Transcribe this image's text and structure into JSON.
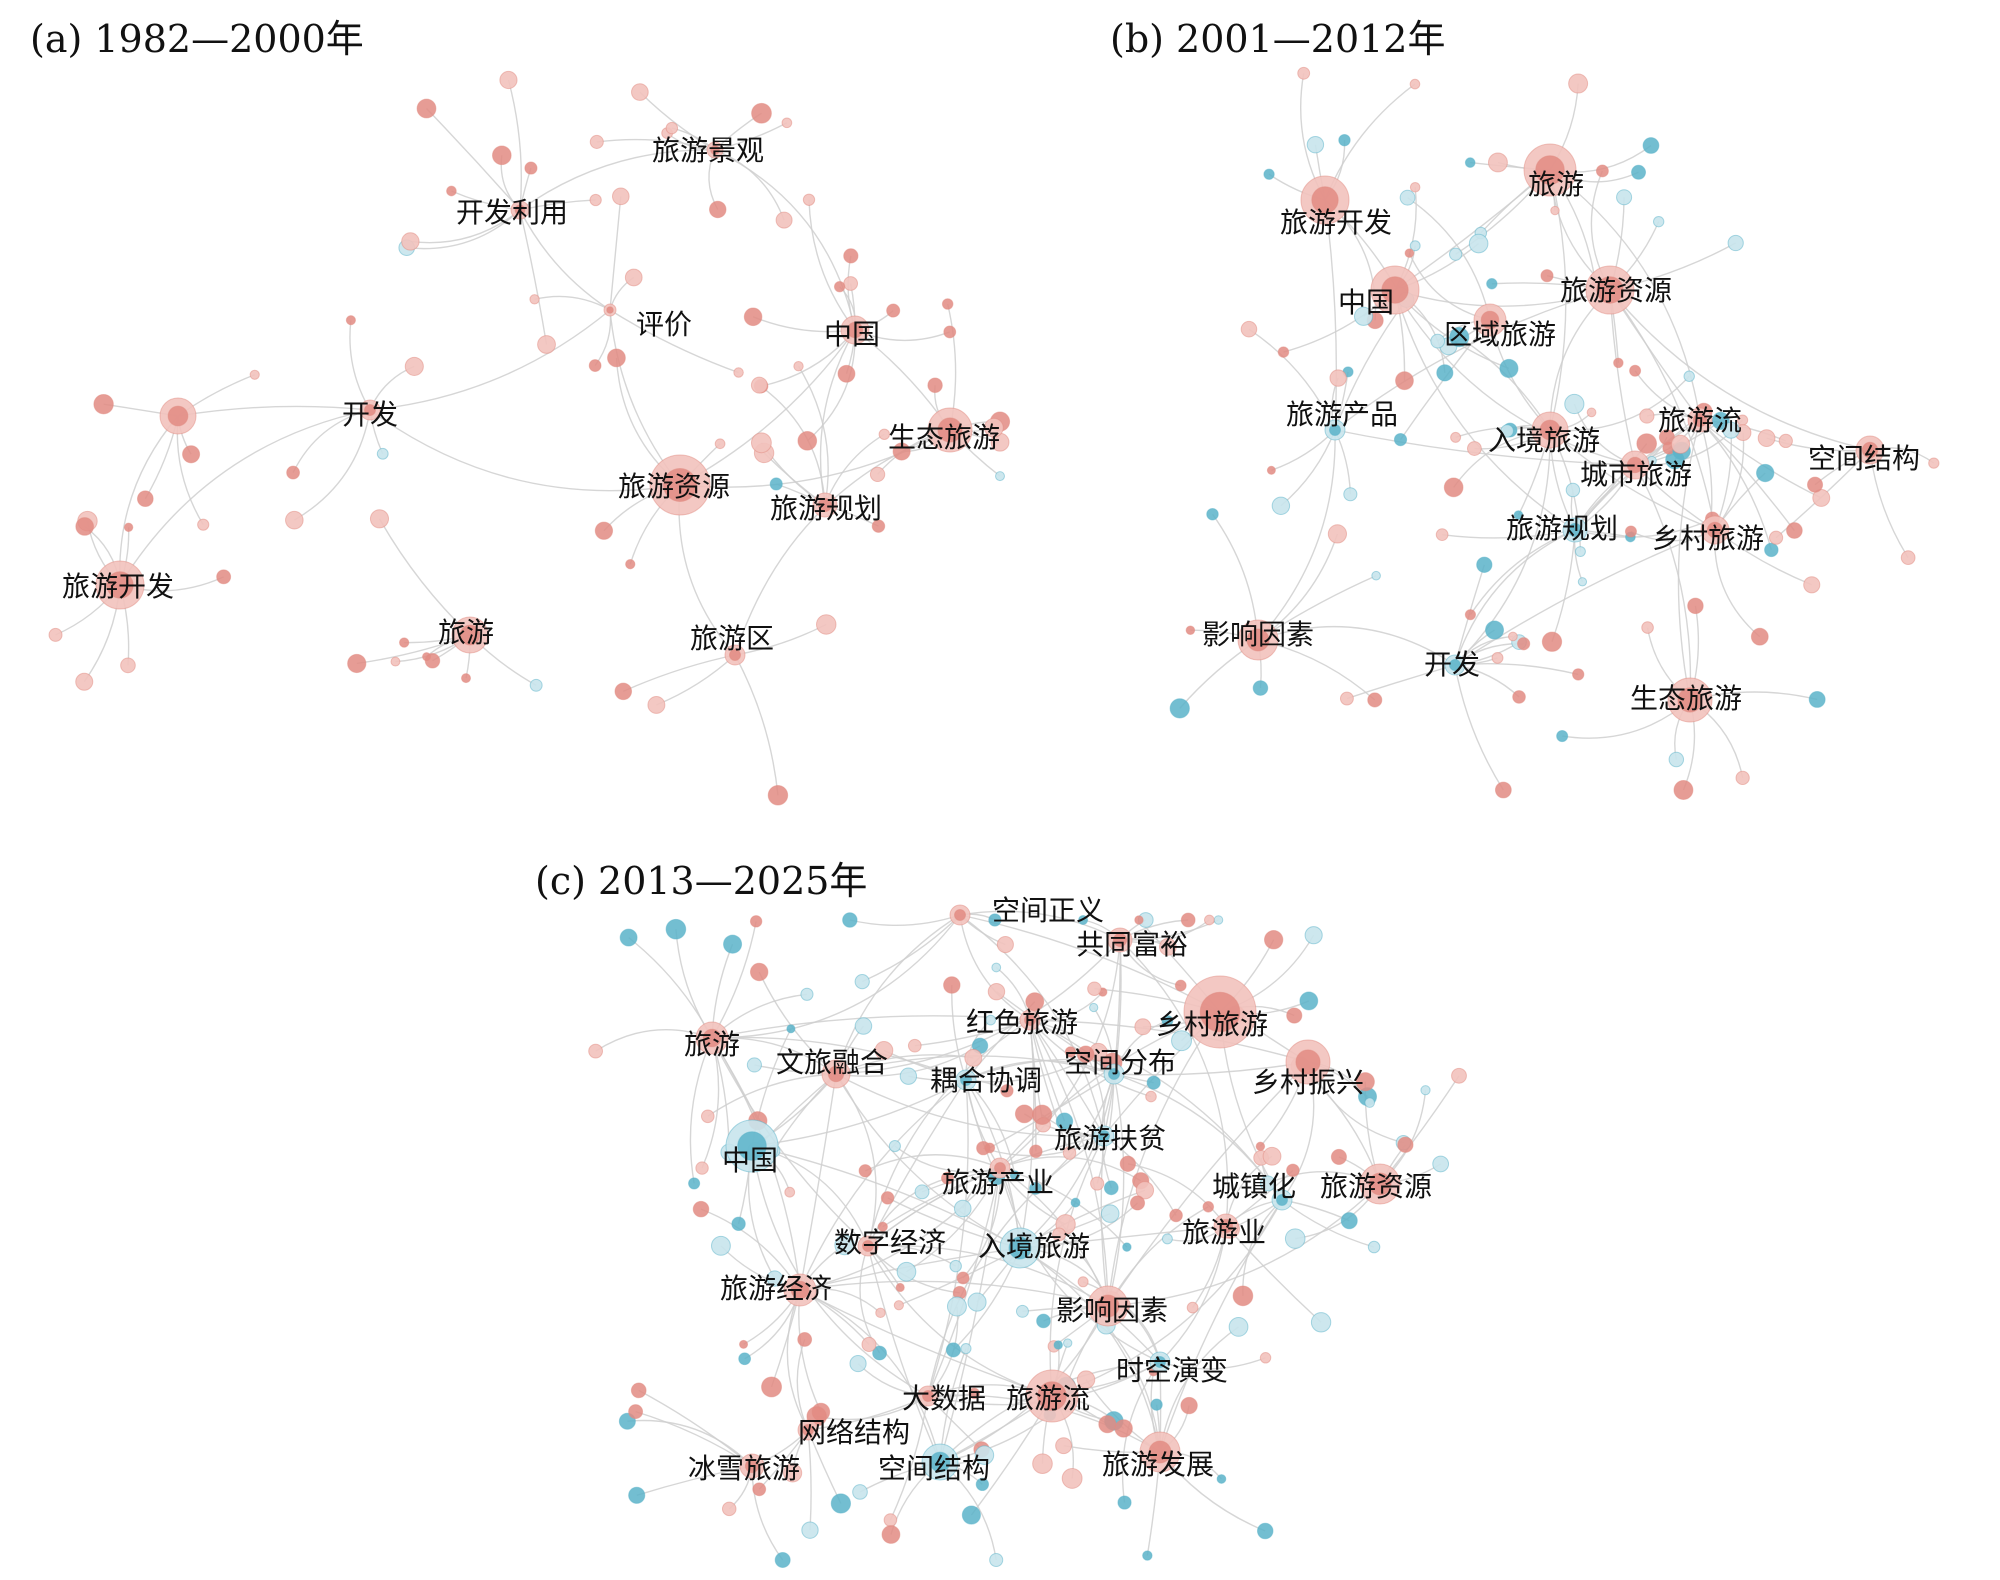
{
  "colors": {
    "pink": "#e28b82",
    "pink_light": "#f2c2bd",
    "blue": "#5bb3c9",
    "blue_light": "#c8e4ec",
    "edge": "#cfcfcf"
  },
  "panels": [
    {
      "title": "(a) 1982—2000年",
      "labels": [
        "旅游景观",
        "开发利用",
        "评价",
        "中国",
        "开发",
        "生态旅游",
        "旅游资源",
        "旅游规划",
        "旅游开发",
        "旅游",
        "旅游区"
      ]
    },
    {
      "title": "(b) 2001—2012年",
      "labels": [
        "旅游",
        "旅游开发",
        "中国",
        "旅游资源",
        "区域旅游",
        "旅游产品",
        "旅游流",
        "空间结构",
        "入境旅游",
        "城市旅游",
        "旅游规划",
        "乡村旅游",
        "影响因素",
        "开发",
        "生态旅游"
      ]
    },
    {
      "title": "(c) 2013—2025年",
      "labels": [
        "空间正义",
        "共同富裕",
        "红色旅游",
        "乡村旅游",
        "旅游",
        "文旅融合",
        "空间分布",
        "耦合协调",
        "乡村振兴",
        "旅游扶贫",
        "中国",
        "旅游产业",
        "城镇化",
        "旅游资源",
        "旅游业",
        "数字经济",
        "入境旅游",
        "旅游经济",
        "影响因素",
        "时空演变",
        "大数据",
        "旅游流",
        "网络结构",
        "冰雪旅游",
        "空间结构",
        "旅游发展"
      ]
    }
  ]
}
